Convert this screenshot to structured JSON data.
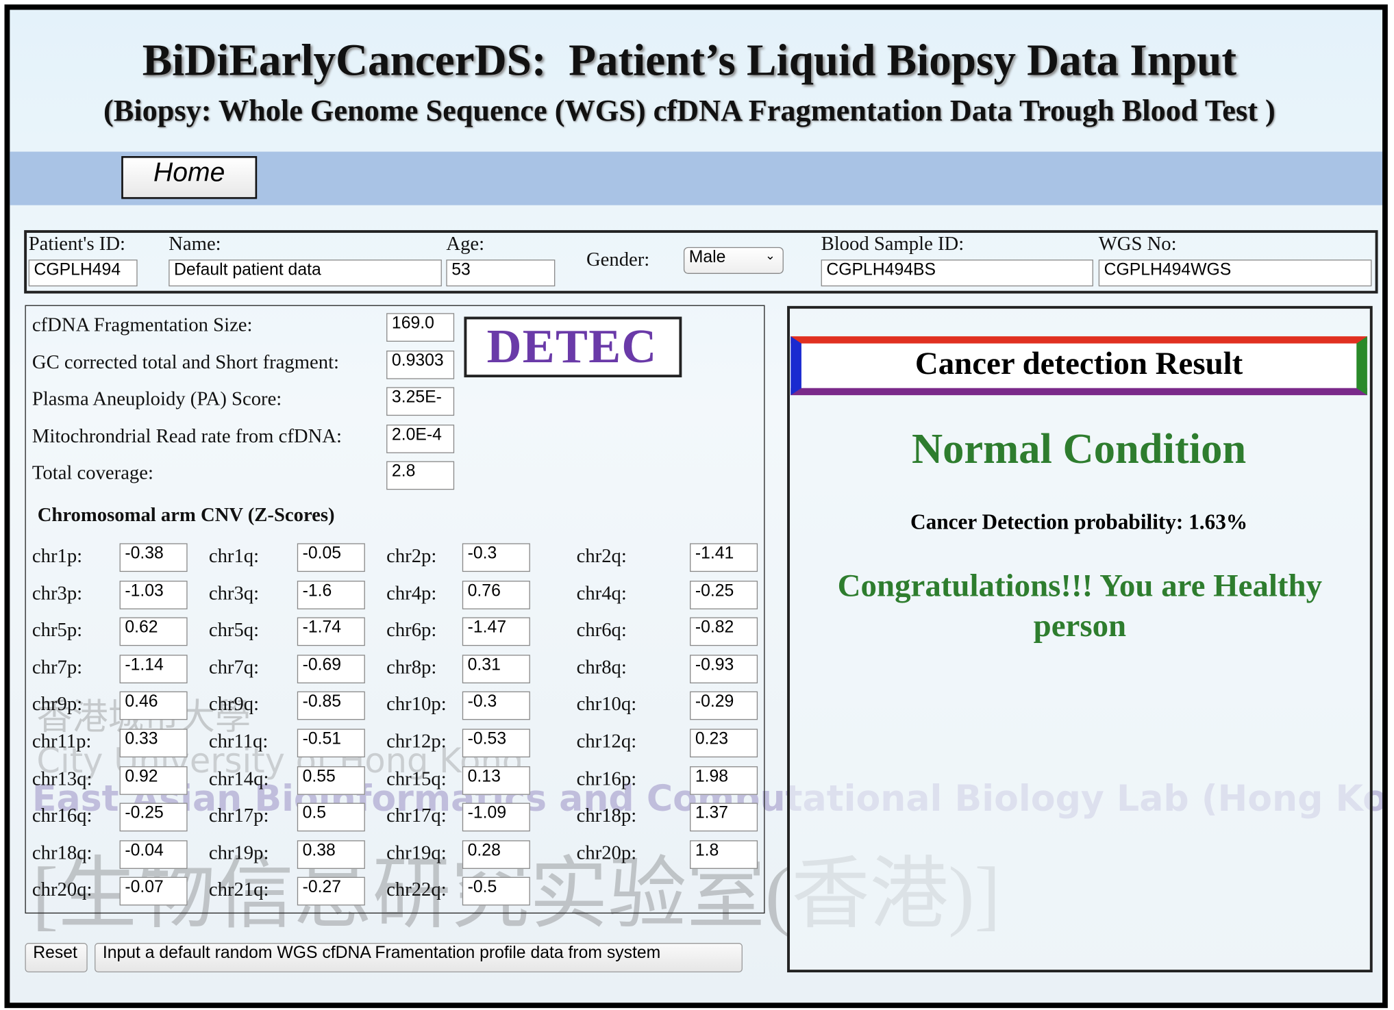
{
  "header": {
    "title": "BiDiEarlyCancerDS:  Patient’s Liquid Biopsy Data Input",
    "subtitle": "(Biopsy: Whole Genome Sequence (WGS) cfDNA Fragmentation Data Trough Blood Test )",
    "home": "Home"
  },
  "patient": {
    "fields": [
      {
        "label": "Patient's ID:",
        "value": "CGPLH494"
      },
      {
        "label": "Name:",
        "value": "Default patient data"
      },
      {
        "label": "Age:",
        "value": "53"
      },
      {
        "label": "Blood Sample ID:",
        "value": "CGPLH494BS"
      },
      {
        "label": "WGS No:",
        "value": "CGPLH494WGS"
      }
    ],
    "gender": {
      "label": "Gender:",
      "value": "Male"
    }
  },
  "measures": [
    {
      "label": "cfDNA Fragmentation Size:",
      "value": "169.0"
    },
    {
      "label": "GC corrected total and Short fragment:",
      "value": "0.9303"
    },
    {
      "label": "Plasma Aneuploidy (PA) Score:",
      "value": "3.25E-"
    },
    {
      "label": "Mitochrondrial Read rate from cfDNA:",
      "value": "2.0E-4"
    },
    {
      "label": "Total coverage:",
      "value": "2.8"
    }
  ],
  "logo": "DETEC",
  "cnv": {
    "title": "Chromosomal arm CNV (Z-Scores)",
    "items": [
      {
        "label": "chr1p:",
        "value": "-0.38"
      },
      {
        "label": "chr1q:",
        "value": "-0.05"
      },
      {
        "label": "chr2p:",
        "value": "-0.3"
      },
      {
        "label": "chr2q:",
        "value": "-1.41"
      },
      {
        "label": "chr3p:",
        "value": "-1.03"
      },
      {
        "label": "chr3q:",
        "value": "-1.6"
      },
      {
        "label": "chr4p:",
        "value": "0.76"
      },
      {
        "label": "chr4q:",
        "value": "-0.25"
      },
      {
        "label": "chr5p:",
        "value": "0.62"
      },
      {
        "label": "chr5q:",
        "value": "-1.74"
      },
      {
        "label": "chr6p:",
        "value": "-1.47"
      },
      {
        "label": "chr6q:",
        "value": "-0.82"
      },
      {
        "label": "chr7p:",
        "value": "-1.14"
      },
      {
        "label": "chr7q:",
        "value": "-0.69"
      },
      {
        "label": "chr8p:",
        "value": "0.31"
      },
      {
        "label": "chr8q:",
        "value": "-0.93"
      },
      {
        "label": "chr9p:",
        "value": "0.46"
      },
      {
        "label": "chr9q:",
        "value": "-0.85"
      },
      {
        "label": "chr10p:",
        "value": "-0.3"
      },
      {
        "label": "chr10q:",
        "value": "-0.29"
      },
      {
        "label": "chr11p:",
        "value": "0.33"
      },
      {
        "label": "chr11q:",
        "value": "-0.51"
      },
      {
        "label": "chr12p:",
        "value": "-0.53"
      },
      {
        "label": "chr12q:",
        "value": "0.23"
      },
      {
        "label": "chr13q:",
        "value": "0.92"
      },
      {
        "label": "chr14q:",
        "value": "0.55"
      },
      {
        "label": "chr15q:",
        "value": "0.13"
      },
      {
        "label": "chr16p:",
        "value": "1.98"
      },
      {
        "label": "chr16q:",
        "value": "-0.25"
      },
      {
        "label": "chr17p:",
        "value": "0.5"
      },
      {
        "label": "chr17q:",
        "value": "-1.09"
      },
      {
        "label": "chr18p:",
        "value": "1.37"
      },
      {
        "label": "chr18q:",
        "value": "-0.04"
      },
      {
        "label": "chr19p:",
        "value": "0.38"
      },
      {
        "label": "chr19q:",
        "value": "0.28"
      },
      {
        "label": "chr20p:",
        "value": "1.8"
      },
      {
        "label": "chr20q:",
        "value": "-0.07"
      },
      {
        "label": "chr21q:",
        "value": "-0.27"
      },
      {
        "label": "chr22q:",
        "value": "-0.5"
      }
    ]
  },
  "result": {
    "title": "Cancer detection Result",
    "status": "Normal Condition",
    "probability": "Cancer Detection probability: 1.63%",
    "message": "Congratulations!!! You are Healthy person"
  },
  "buttons": [
    "Reset",
    "Input a default random WGS cfDNA Framentation profile data from system"
  ],
  "watermark": [
    "香港城市大學",
    "City University of Hong Kong",
    "East Asian Bioinformatics and Computational Biology Lab (Hong Kong)",
    "[生物信息研究实验室(香港)]"
  ]
}
